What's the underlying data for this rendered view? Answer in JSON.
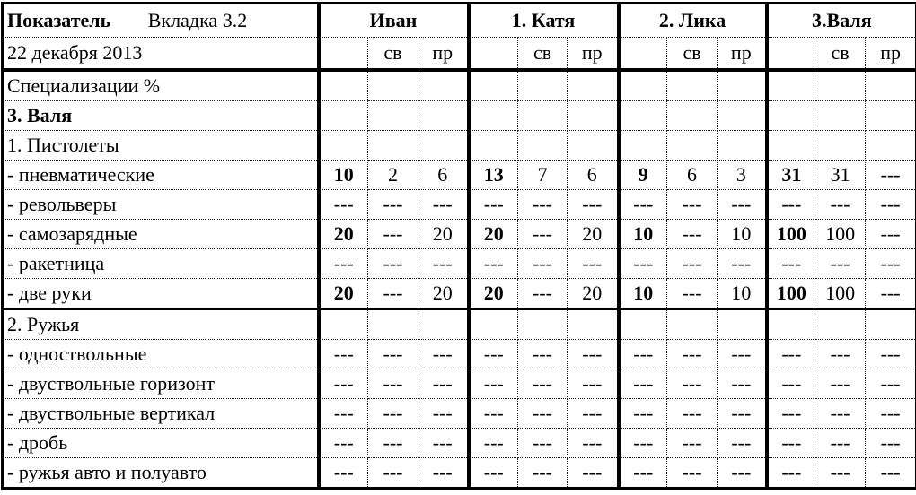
{
  "header": {
    "indicator_label": "Показатель",
    "tab_label": "Вкладка 3.2",
    "date": "22 декабря 2013",
    "groups": [
      "Иван",
      "1. Катя",
      "2. Лика",
      "3.Валя"
    ],
    "sub_columns": [
      "",
      "св",
      "пр"
    ]
  },
  "rows": [
    {
      "label": "Специализации %",
      "bold": false,
      "values": [
        "",
        "",
        "",
        "",
        "",
        "",
        "",
        "",
        "",
        "",
        "",
        ""
      ]
    },
    {
      "label": "3. Валя",
      "bold": true,
      "values": [
        "",
        "",
        "",
        "",
        "",
        "",
        "",
        "",
        "",
        "",
        "",
        ""
      ]
    },
    {
      "label": "1. Пистолеты",
      "bold": false,
      "values": [
        "",
        "",
        "",
        "",
        "",
        "",
        "",
        "",
        "",
        "",
        "",
        ""
      ]
    },
    {
      "label": "- пневматические",
      "bold": false,
      "values": [
        "10",
        "2",
        "6",
        "13",
        "7",
        "6",
        "9",
        "6",
        "3",
        "31",
        "31",
        "---"
      ]
    },
    {
      "label": "- револьверы",
      "bold": false,
      "values": [
        "---",
        "---",
        "---",
        "---",
        "---",
        "---",
        "---",
        "---",
        "---",
        "---",
        "---",
        "---"
      ]
    },
    {
      "label": "- самозарядные",
      "bold": false,
      "values": [
        "20",
        "---",
        "20",
        "20",
        "---",
        "20",
        "10",
        "---",
        "10",
        "100",
        "100",
        "---"
      ]
    },
    {
      "label": "- ракетница",
      "bold": false,
      "values": [
        "---",
        "---",
        "---",
        "---",
        "---",
        "---",
        "---",
        "---",
        "---",
        "---",
        "---",
        "---"
      ]
    },
    {
      "label": "- две руки",
      "bold": false,
      "values": [
        "20",
        "---",
        "20",
        "20",
        "---",
        "20",
        "10",
        "---",
        "10",
        "100",
        "100",
        "---"
      ]
    },
    {
      "label": "2. Ружья",
      "bold": false,
      "values": [
        "",
        "",
        "",
        "",
        "",
        "",
        "",
        "",
        "",
        "",
        "",
        ""
      ]
    },
    {
      "label": "- одноствольные",
      "bold": false,
      "values": [
        "---",
        "---",
        "---",
        "---",
        "---",
        "---",
        "---",
        "---",
        "---",
        "---",
        "---",
        "---"
      ]
    },
    {
      "label": "- двуствольные горизонт",
      "bold": false,
      "values": [
        "---",
        "---",
        "---",
        "---",
        "---",
        "---",
        "---",
        "---",
        "---",
        "---",
        "---",
        "---"
      ]
    },
    {
      "label": "- двуствольные вертикал",
      "bold": false,
      "values": [
        "---",
        "---",
        "---",
        "---",
        "---",
        "---",
        "---",
        "---",
        "---",
        "---",
        "---",
        "---"
      ]
    },
    {
      "label": "- дробь",
      "bold": false,
      "values": [
        "---",
        "---",
        "---",
        "---",
        "---",
        "---",
        "---",
        "---",
        "---",
        "---",
        "---",
        "---"
      ]
    },
    {
      "label": "- ружья авто и полуавто",
      "bold": false,
      "values": [
        "---",
        "---",
        "---",
        "---",
        "---",
        "---",
        "---",
        "---",
        "---",
        "---",
        "---",
        "---"
      ]
    }
  ]
}
